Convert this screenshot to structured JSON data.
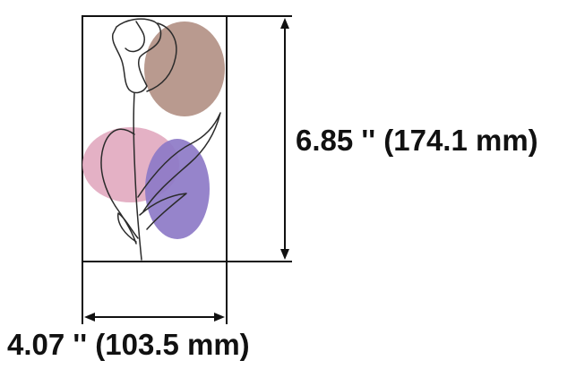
{
  "design": {
    "height_dimension": "6.85 '' (174.1 mm)",
    "width_dimension": "4.07 '' (103.5 mm)",
    "colors": {
      "outline": "#111111",
      "brown_blob": "#b99a8f",
      "pink_blob": "#e1a9bf",
      "purple_blob": "#8d7ac7",
      "stitch_line": "#2b2b2b"
    },
    "motif": "tulip-line-art"
  }
}
